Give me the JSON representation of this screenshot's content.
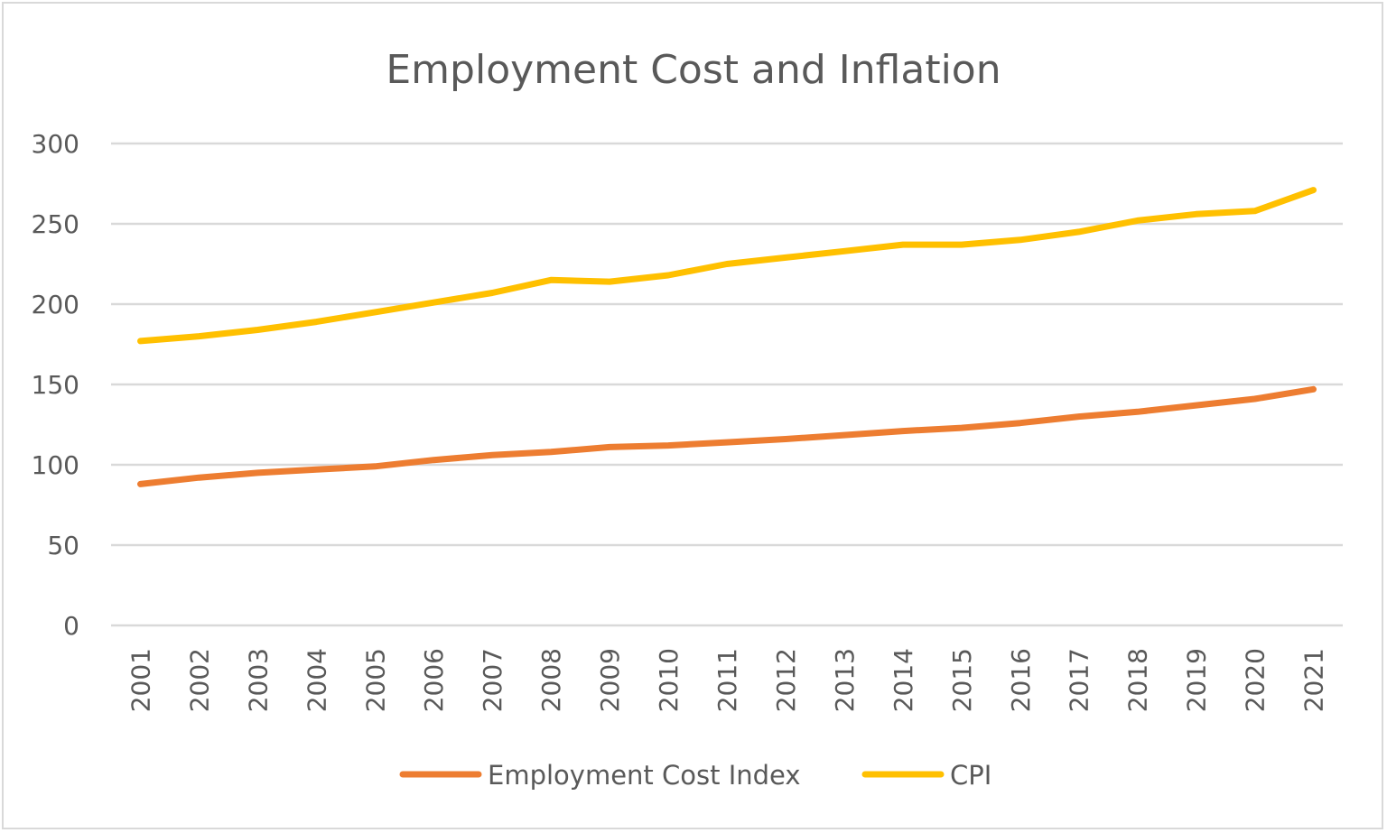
{
  "chart_data": {
    "type": "line",
    "title": "Employment Cost and Inflation",
    "xlabel": "",
    "ylabel": "",
    "ylim": [
      0,
      300
    ],
    "yticks": [
      0,
      50,
      100,
      150,
      200,
      250,
      300
    ],
    "grid": true,
    "legend_position": "bottom",
    "categories": [
      "2001",
      "2002",
      "2003",
      "2004",
      "2005",
      "2006",
      "2007",
      "2008",
      "2009",
      "2010",
      "2011",
      "2012",
      "2013",
      "2014",
      "2015",
      "2016",
      "2017",
      "2018",
      "2019",
      "2020",
      "2021"
    ],
    "series": [
      {
        "name": "Employment Cost Index",
        "color": "#ed7d31",
        "values": [
          88,
          92,
          95,
          97,
          99,
          103,
          106,
          108,
          111,
          112,
          114,
          116,
          118.5,
          121,
          123,
          126,
          130,
          133,
          137,
          141,
          147
        ]
      },
      {
        "name": "CPI",
        "color": "#ffc000",
        "values": [
          177,
          180,
          184,
          189,
          195,
          201,
          207,
          215,
          214,
          218,
          225,
          229,
          233,
          237,
          237,
          240,
          245,
          252,
          256,
          258,
          271
        ]
      }
    ]
  }
}
